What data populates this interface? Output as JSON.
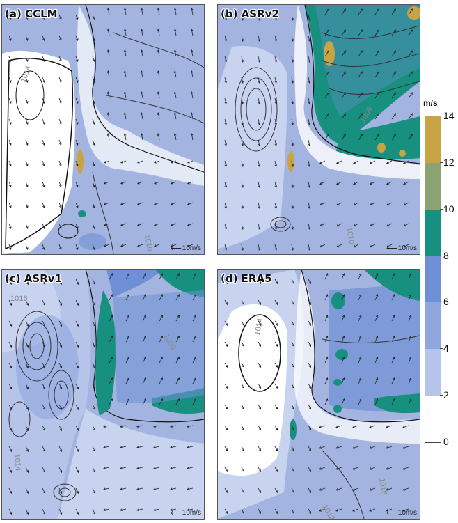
{
  "panels": [
    {
      "id": "a",
      "label": "(a) CCLM",
      "ref_label": "10m/s"
    },
    {
      "id": "b",
      "label": "(b) ASRv2",
      "ref_label": "10m/s"
    },
    {
      "id": "c",
      "label": "(c) ASRv1",
      "ref_label": "10m/s"
    },
    {
      "id": "d",
      "label": "(d) ERA5",
      "ref_label": "10m/s"
    }
  ],
  "contour_labels": {
    "a": [
      "1014",
      "1010"
    ],
    "b": [
      "1010",
      "1008"
    ],
    "c": [
      "1016",
      "1014",
      "1000"
    ],
    "d": [
      "1014",
      "1016",
      "1012"
    ]
  },
  "colorbar": {
    "unit": "m/s",
    "ticks": [
      "14",
      "12",
      "10",
      "8",
      "6",
      "4",
      "2",
      "0"
    ],
    "colors": [
      "#c9a445",
      "#8aa370",
      "#17907f",
      "#6f8fd6",
      "#90a6df",
      "#b6c4ea",
      "#ffffff"
    ]
  },
  "colors": {
    "background_speed": "#a3b4e0",
    "calm": "#ffffff",
    "light": "#c8d3f0",
    "medium": "#6f8fd6",
    "strong": "#17907f",
    "very_strong": "#c9a445"
  }
}
